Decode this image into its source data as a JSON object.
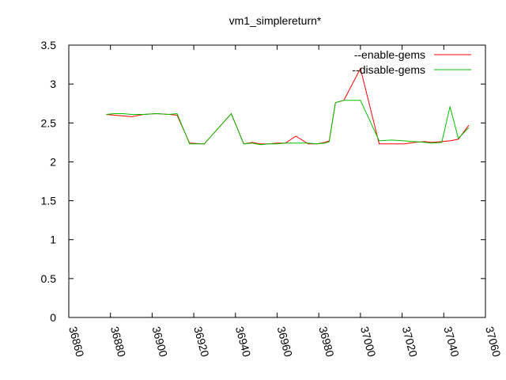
{
  "chart_data": {
    "type": "line",
    "title": "vm1_simplereturn*",
    "xlabel": "",
    "ylabel": "",
    "xlim": [
      36860,
      37060
    ],
    "ylim": [
      0,
      3.5
    ],
    "x_ticks": [
      "36860",
      "36880",
      "36900",
      "36920",
      "36940",
      "36960",
      "36980",
      "37000",
      "37020",
      "37040",
      "37060"
    ],
    "y_ticks": [
      "0",
      "0.5",
      "1",
      "1.5",
      "2",
      "2.5",
      "3",
      "3.5"
    ],
    "grid": false,
    "legend_position": "top-right",
    "series": [
      {
        "name": "--enable-gems",
        "color": "#ff0000",
        "x": [
          36878,
          36882,
          36886,
          36890,
          36896,
          36902,
          36908,
          36912,
          36918,
          36925,
          36938,
          36944,
          36948,
          36952,
          36956,
          36960,
          36964,
          36969,
          36975,
          36979,
          36983,
          36985,
          36988,
          36992,
          37000,
          37009,
          37015,
          37021,
          37026,
          37031,
          37034,
          37039,
          37043,
          37047,
          37052
        ],
        "y": [
          2.61,
          2.6,
          2.59,
          2.58,
          2.61,
          2.62,
          2.61,
          2.6,
          2.24,
          2.23,
          2.62,
          2.23,
          2.25,
          2.23,
          2.23,
          2.24,
          2.24,
          2.33,
          2.23,
          2.23,
          2.25,
          2.27,
          2.76,
          2.79,
          3.2,
          2.23,
          2.23,
          2.23,
          2.25,
          2.26,
          2.25,
          2.26,
          2.27,
          2.29,
          2.47
        ]
      },
      {
        "name": "--disable-gems",
        "color": "#00c000",
        "x": [
          36878,
          36882,
          36886,
          36890,
          36896,
          36902,
          36908,
          36912,
          36918,
          36925,
          36938,
          36944,
          36948,
          36952,
          36956,
          36960,
          36964,
          36969,
          36975,
          36979,
          36983,
          36985,
          36988,
          36992,
          37000,
          37009,
          37015,
          37021,
          37026,
          37031,
          37034,
          37039,
          37043,
          37047,
          37052
        ],
        "y": [
          2.61,
          2.62,
          2.62,
          2.61,
          2.61,
          2.62,
          2.61,
          2.62,
          2.23,
          2.23,
          2.62,
          2.23,
          2.24,
          2.22,
          2.23,
          2.23,
          2.24,
          2.24,
          2.24,
          2.23,
          2.24,
          2.26,
          2.76,
          2.79,
          2.79,
          2.27,
          2.28,
          2.27,
          2.26,
          2.25,
          2.24,
          2.25,
          2.71,
          2.3,
          2.44
        ]
      }
    ]
  }
}
